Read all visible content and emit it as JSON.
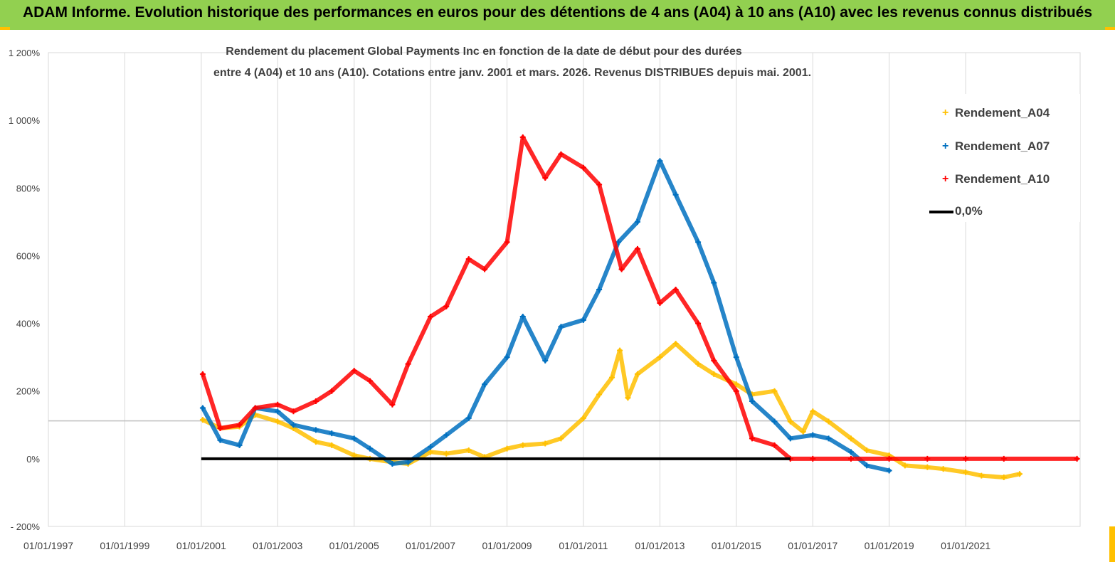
{
  "banner": {
    "title": "ADAM Informe. Evolution historique des performances en euros pour des détentions de 4 ans (A04) à 10 ans (A10) avec les revenus connus distribués"
  },
  "colors": {
    "banner_bg": "#92d050",
    "accent": "#ffc000",
    "a04": "#ffc000",
    "a07": "#0070c0",
    "a10": "#ff0000",
    "zero_line": "#000000",
    "grid": "#d9d9d9"
  },
  "chart_data": {
    "type": "scatter",
    "title_line1": "Rendement du placement Global Payments Inc en fonction de la date de début pour des durées",
    "title_line2": "entre 4 (A04) et 10 ans (A10). Cotations entre janv. 2001 et mars. 2026. Revenus DISTRIBUES depuis mai. 2001.",
    "y_ticks": [
      "- 200%",
      "0%",
      "200%",
      "400%",
      "600%",
      "800%",
      "1 000%",
      "1 200%"
    ],
    "x_ticks": [
      "01/01/1997",
      "01/01/1999",
      "01/01/2001",
      "01/01/2003",
      "01/01/2005",
      "01/01/2007",
      "01/01/2009",
      "01/01/2011",
      "01/01/2013",
      "01/01/2015",
      "01/01/2017",
      "01/01/2019",
      "01/01/2021"
    ],
    "ylim": [
      -200,
      1200
    ],
    "xlim": [
      "1997-01-01",
      "2023-12-31"
    ],
    "grid": "vertical",
    "legend_position": "top-right",
    "series": [
      {
        "name": "Rendement_A04",
        "color": "#ffc000",
        "marker": "+",
        "points": [
          [
            "2001-01-15",
            115
          ],
          [
            "2001-07-01",
            90
          ],
          [
            "2002-01-01",
            95
          ],
          [
            "2002-06-01",
            130
          ],
          [
            "2003-01-01",
            110
          ],
          [
            "2003-06-01",
            90
          ],
          [
            "2004-01-01",
            50
          ],
          [
            "2004-06-01",
            40
          ],
          [
            "2005-01-01",
            10
          ],
          [
            "2005-06-01",
            0
          ],
          [
            "2006-01-01",
            -10
          ],
          [
            "2006-06-01",
            -15
          ],
          [
            "2007-01-01",
            20
          ],
          [
            "2007-06-01",
            15
          ],
          [
            "2008-01-01",
            25
          ],
          [
            "2008-06-01",
            5
          ],
          [
            "2009-01-01",
            30
          ],
          [
            "2009-06-01",
            40
          ],
          [
            "2010-01-01",
            45
          ],
          [
            "2010-06-01",
            60
          ],
          [
            "2011-01-01",
            120
          ],
          [
            "2011-06-01",
            190
          ],
          [
            "2011-10-01",
            240
          ],
          [
            "2011-12-15",
            320
          ],
          [
            "2012-03-01",
            180
          ],
          [
            "2012-06-01",
            250
          ],
          [
            "2013-01-01",
            300
          ],
          [
            "2013-06-01",
            340
          ],
          [
            "2014-01-01",
            280
          ],
          [
            "2014-06-01",
            250
          ],
          [
            "2015-01-01",
            220
          ],
          [
            "2015-06-01",
            190
          ],
          [
            "2016-01-01",
            200
          ],
          [
            "2016-06-01",
            110
          ],
          [
            "2016-10-01",
            80
          ],
          [
            "2017-01-01",
            140
          ],
          [
            "2017-06-01",
            110
          ],
          [
            "2018-01-01",
            60
          ],
          [
            "2018-06-01",
            25
          ],
          [
            "2019-01-01",
            10
          ],
          [
            "2019-06-01",
            -20
          ],
          [
            "2020-01-01",
            -25
          ],
          [
            "2020-06-01",
            -30
          ],
          [
            "2021-01-01",
            -40
          ],
          [
            "2021-06-01",
            -50
          ],
          [
            "2022-01-01",
            -55
          ],
          [
            "2022-06-01",
            -45
          ]
        ]
      },
      {
        "name": "Rendement_A07",
        "color": "#0070c0",
        "marker": "+",
        "points": [
          [
            "2001-01-15",
            150
          ],
          [
            "2001-07-01",
            55
          ],
          [
            "2002-01-01",
            40
          ],
          [
            "2002-06-01",
            150
          ],
          [
            "2003-01-01",
            140
          ],
          [
            "2003-06-01",
            100
          ],
          [
            "2004-01-01",
            85
          ],
          [
            "2004-06-01",
            75
          ],
          [
            "2005-01-01",
            60
          ],
          [
            "2005-06-01",
            30
          ],
          [
            "2006-01-01",
            -15
          ],
          [
            "2006-06-01",
            -10
          ],
          [
            "2007-01-01",
            35
          ],
          [
            "2007-06-01",
            70
          ],
          [
            "2008-01-01",
            120
          ],
          [
            "2008-06-01",
            220
          ],
          [
            "2009-01-01",
            300
          ],
          [
            "2009-06-01",
            420
          ],
          [
            "2010-01-01",
            290
          ],
          [
            "2010-06-01",
            390
          ],
          [
            "2011-01-01",
            410
          ],
          [
            "2011-06-01",
            500
          ],
          [
            "2011-12-01",
            640
          ],
          [
            "2012-06-01",
            700
          ],
          [
            "2013-01-01",
            880
          ],
          [
            "2013-06-01",
            780
          ],
          [
            "2014-01-01",
            640
          ],
          [
            "2014-06-01",
            520
          ],
          [
            "2015-01-01",
            300
          ],
          [
            "2015-06-01",
            170
          ],
          [
            "2016-01-01",
            110
          ],
          [
            "2016-06-01",
            60
          ],
          [
            "2017-01-01",
            70
          ],
          [
            "2017-06-01",
            60
          ],
          [
            "2018-01-01",
            20
          ],
          [
            "2018-06-01",
            -20
          ],
          [
            "2019-01-01",
            -35
          ]
        ]
      },
      {
        "name": "Rendement_A10",
        "color": "#ff0000",
        "marker": "+",
        "points": [
          [
            "2001-01-15",
            250
          ],
          [
            "2001-07-01",
            90
          ],
          [
            "2002-01-01",
            100
          ],
          [
            "2002-06-01",
            150
          ],
          [
            "2003-01-01",
            160
          ],
          [
            "2003-06-01",
            140
          ],
          [
            "2004-01-01",
            170
          ],
          [
            "2004-06-01",
            200
          ],
          [
            "2005-01-01",
            260
          ],
          [
            "2005-06-01",
            230
          ],
          [
            "2006-01-01",
            160
          ],
          [
            "2006-06-01",
            280
          ],
          [
            "2007-01-01",
            420
          ],
          [
            "2007-06-01",
            450
          ],
          [
            "2008-01-01",
            590
          ],
          [
            "2008-06-01",
            560
          ],
          [
            "2009-01-01",
            640
          ],
          [
            "2009-06-01",
            950
          ],
          [
            "2010-01-01",
            830
          ],
          [
            "2010-06-01",
            900
          ],
          [
            "2011-01-01",
            860
          ],
          [
            "2011-06-01",
            810
          ],
          [
            "2012-01-01",
            560
          ],
          [
            "2012-06-01",
            620
          ],
          [
            "2013-01-01",
            460
          ],
          [
            "2013-06-01",
            500
          ],
          [
            "2014-01-01",
            400
          ],
          [
            "2014-06-01",
            290
          ],
          [
            "2015-01-01",
            200
          ],
          [
            "2015-06-01",
            60
          ],
          [
            "2016-01-01",
            40
          ],
          [
            "2016-06-01",
            0
          ],
          [
            "2017-01-01",
            0
          ],
          [
            "2018-01-01",
            0
          ],
          [
            "2019-01-01",
            0
          ],
          [
            "2020-01-01",
            0
          ],
          [
            "2021-01-01",
            0
          ],
          [
            "2022-01-01",
            0
          ],
          [
            "2023-12-01",
            0
          ]
        ]
      },
      {
        "name": "0,0%",
        "color": "#000000",
        "marker": "line",
        "points": [
          [
            "2001-01-01",
            0
          ],
          [
            "2016-06-01",
            0
          ]
        ]
      }
    ]
  }
}
